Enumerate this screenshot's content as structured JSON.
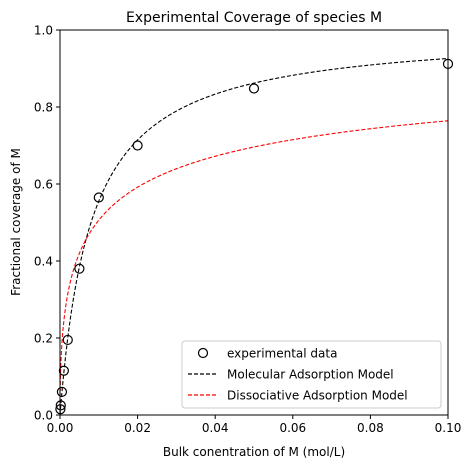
{
  "chart_data": {
    "type": "scatter",
    "title": "Experimental Coverage of species M",
    "xlabel": "Bulk conentration of M (mol/L)",
    "ylabel": "Fractional coverage of M",
    "xlim": [
      0,
      0.1
    ],
    "ylim": [
      0,
      1.0
    ],
    "xticks": [
      0,
      0.02,
      0.04,
      0.06,
      0.08,
      0.1
    ],
    "xtick_labels": [
      "0.00",
      "0.02",
      "0.04",
      "0.06",
      "0.08",
      "0.10"
    ],
    "yticks": [
      0,
      0.2,
      0.4,
      0.6,
      0.8,
      1.0
    ],
    "ytick_labels": [
      "0.0",
      "0.2",
      "0.4",
      "0.6",
      "0.8",
      "1.0"
    ],
    "grid": false,
    "legend_position": "bottom-right",
    "series": [
      {
        "name": "experimental data",
        "kind": "scatter",
        "marker": "open-circle",
        "color": "#000000",
        "x": [
          0.0001,
          0.0002,
          0.0005,
          0.001,
          0.002,
          0.005,
          0.01,
          0.02,
          0.05,
          0.1
        ],
        "y": [
          0.015,
          0.025,
          0.06,
          0.115,
          0.195,
          0.38,
          0.565,
          0.7,
          0.848,
          0.912
        ]
      },
      {
        "name": "Molecular Adsorption Model",
        "kind": "line",
        "dash": "dashed",
        "color": "#000000",
        "model": "langmuir",
        "K": 125
      },
      {
        "name": "Dissociative Adsorption Model",
        "kind": "line",
        "dash": "dashed",
        "color": "#ff0000",
        "model": "dissociative",
        "K": 105
      }
    ]
  }
}
